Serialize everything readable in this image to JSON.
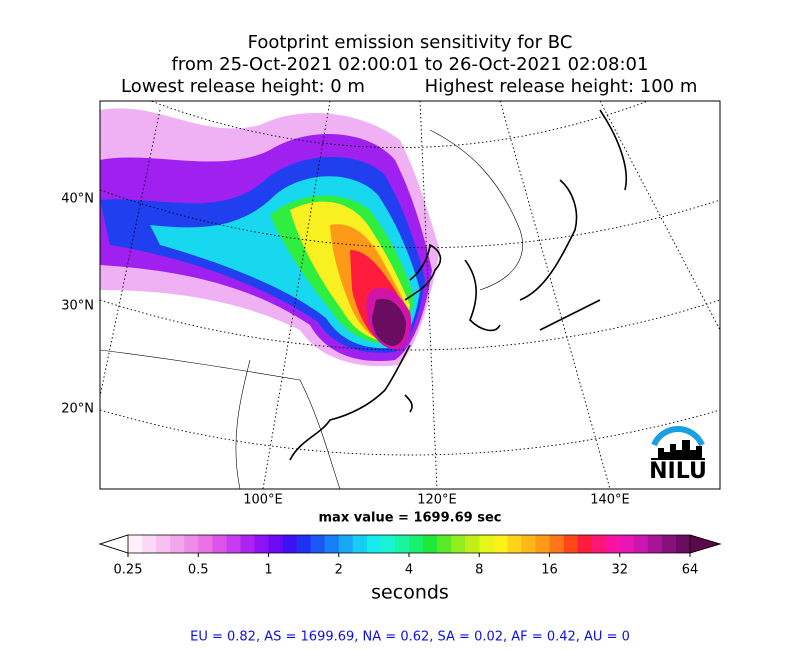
{
  "title_lines": [
    "Footprint emission sensitivity for BC",
    "from 25-Oct-2021 02:00:01 to 26-Oct-2021 02:08:01"
  ],
  "release": {
    "lowest": "Lowest release height: 0 m",
    "highest": "Highest release height: 100 m"
  },
  "map": {
    "lat_labels": [
      {
        "value": 40,
        "label": "40°N"
      },
      {
        "value": 30,
        "label": "30°N"
      },
      {
        "value": 20,
        "label": "20°N"
      }
    ],
    "lon_labels": [
      {
        "value": 100,
        "label": "100°E"
      },
      {
        "value": 120,
        "label": "120°E"
      },
      {
        "value": 140,
        "label": "140°E"
      }
    ],
    "logo": "NILU"
  },
  "max_value": "max value = 1699.69 sec",
  "colorbar": {
    "log": true,
    "lim": [
      0.25,
      64
    ],
    "ticks": [
      0.25,
      0.5,
      1,
      2,
      4,
      8,
      16,
      32,
      64
    ],
    "label": "seconds",
    "under_color": "#ffffff",
    "over_color": "#5a0a4a",
    "colors": [
      "#fff0fa",
      "#fbd8f5",
      "#f7c0f0",
      "#f3a6ec",
      "#ee8ce8",
      "#e872e6",
      "#dc55ea",
      "#c83cf0",
      "#ae22f4",
      "#8e12f6",
      "#6a0af6",
      "#4010f4",
      "#2030f2",
      "#1a58f4",
      "#1880f6",
      "#18a8f6",
      "#18cdf4",
      "#18ebee",
      "#18f4d0",
      "#18f4a0",
      "#18f070",
      "#20e838",
      "#58ea28",
      "#90ee20",
      "#c0f018",
      "#e6f618",
      "#fff018",
      "#ffd418",
      "#ffb818",
      "#ff9a18",
      "#ff7418",
      "#ff4818",
      "#ff1c3c",
      "#ff1478",
      "#f814a0",
      "#e814b4",
      "#cc14b0",
      "#a81498",
      "#86107a",
      "#6a0c60"
    ]
  },
  "footer": "EU = 0.82,  AS = 1699.69,  NA = 0.62,  SA = 0.02,  AF = 0.42,  AU = 0"
}
